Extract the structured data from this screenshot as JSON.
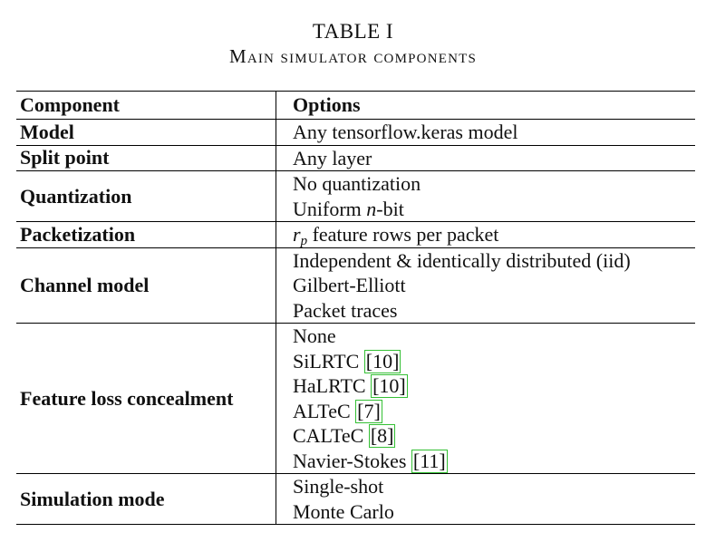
{
  "caption": {
    "label": "TABLE I",
    "title": "Main simulator components"
  },
  "table": {
    "header": {
      "component": "Component",
      "options": "Options"
    },
    "rows": [
      {
        "component": "Model",
        "options": [
          "Any tensorflow.keras model"
        ]
      },
      {
        "component": "Split point",
        "options": [
          "Any layer"
        ]
      },
      {
        "component": "Quantization",
        "options": [
          "No quantization",
          "Uniform n-bit"
        ]
      },
      {
        "component": "Packetization",
        "options": [
          "r_p feature rows per packet"
        ]
      },
      {
        "component": "Channel model",
        "options": [
          "Independent & identically distributed (iid)",
          "Gilbert-Elliott",
          "Packet traces"
        ]
      },
      {
        "component": "Feature loss concealment",
        "options": [
          {
            "text": "None"
          },
          {
            "text": "SiLRTC",
            "ref": "[10]"
          },
          {
            "text": "HaLRTC",
            "ref": "[10]"
          },
          {
            "text": "ALTeC",
            "ref": "[7]"
          },
          {
            "text": "CALTeC",
            "ref": "[8]"
          },
          {
            "text": "Navier-Stokes",
            "ref": "[11]"
          }
        ]
      },
      {
        "component": "Simulation mode",
        "options": [
          "Single-shot",
          "Monte Carlo"
        ]
      }
    ],
    "symbols": {
      "n": "n",
      "r": "r",
      "p": "p",
      "uniform_prefix": "Uniform ",
      "uniform_suffix": "-bit",
      "packet_suffix": " feature rows per packet"
    }
  }
}
